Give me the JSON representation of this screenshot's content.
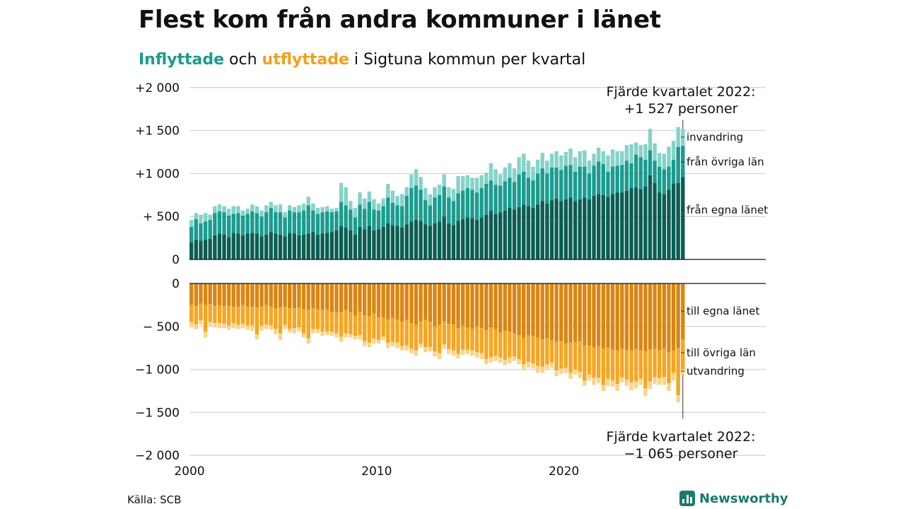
{
  "title": "Flest kom från andra kommuner i länet",
  "subtitle": {
    "in_word": "Inflyttade",
    "and_word": " och ",
    "out_word": "utflyttade",
    "rest": " i Sigtuna kommun per kvartal"
  },
  "annotations": {
    "top_line1": "Fjärde kvartalet 2022:",
    "top_line2": "+1 527 personer",
    "bottom_line1": "Fjärde kvartalet 2022:",
    "bottom_line2": "−1 065 personer"
  },
  "source": "Källa: SCB",
  "logo_text": "Newsworthy",
  "colors": {
    "in_own": "#0b5d52",
    "in_other": "#1a9c8f",
    "in_immig": "#86d3c8",
    "out_own": "#d98613",
    "out_other": "#f5a623",
    "out_emig": "#f9d48c",
    "grid": "#d9d9d9",
    "axis": "#111111"
  },
  "chart_data": {
    "type": "bar",
    "stacked": true,
    "diverging": true,
    "title": "Flest kom från andra kommuner i länet",
    "subtitle": "Inflyttade och utflyttade i Sigtuna kommun per kvartal",
    "xlabel": "",
    "ylabel": "",
    "ylim": [
      -2000,
      2000
    ],
    "y_ticks_top": [
      {
        "value": 2000,
        "label": "+2 000"
      },
      {
        "value": 1500,
        "label": "+1 500"
      },
      {
        "value": 1000,
        "label": "+1 000"
      },
      {
        "value": 500,
        "label": "+  500"
      },
      {
        "value": 0,
        "label": "0"
      }
    ],
    "y_ticks_bottom": [
      {
        "value": 0,
        "label": "0"
      },
      {
        "value": -500,
        "label": "−  500"
      },
      {
        "value": -1000,
        "label": "−1 000"
      },
      {
        "value": -1500,
        "label": "−1 500"
      },
      {
        "value": -2000,
        "label": "−2 000"
      }
    ],
    "x_ticks": [
      {
        "value": 2000,
        "label": "2000"
      },
      {
        "value": 2010,
        "label": "2010"
      },
      {
        "value": 2020,
        "label": "2020"
      }
    ],
    "start_year": 2000,
    "period": "quarter",
    "grid": true,
    "legend": "direct labels on right",
    "series_labels": {
      "in_immig": "invandring",
      "in_other": "från övriga län",
      "in_own": "från egna länet",
      "out_own": "till egna länet",
      "out_other": "till övriga län",
      "out_emig": "utvandring"
    },
    "series": [
      {
        "name": "från egna länet",
        "key": "in_own",
        "values": [
          200,
          230,
          220,
          230,
          240,
          280,
          300,
          290,
          260,
          310,
          300,
          280,
          300,
          310,
          300,
          270,
          290,
          320,
          300,
          290,
          270,
          310,
          300,
          280,
          290,
          300,
          320,
          290,
          300,
          310,
          320,
          340,
          390,
          370,
          340,
          290,
          380,
          350,
          390,
          340,
          350,
          380,
          420,
          400,
          390,
          370,
          410,
          440,
          460,
          450,
          410,
          390,
          420,
          440,
          500,
          420,
          400,
          450,
          470,
          490,
          480,
          460,
          490,
          520,
          570,
          530,
          550,
          570,
          600,
          580,
          610,
          640,
          620,
          600,
          640,
          680,
          650,
          690,
          710,
          680,
          700,
          720,
          680,
          700,
          720,
          700,
          740,
          760,
          750,
          730,
          760,
          780,
          780,
          800,
          830,
          840,
          820,
          850,
          980,
          890,
          780,
          760,
          810,
          880,
          890,
          960
        ]
      },
      {
        "name": "från övriga län",
        "key": "in_other",
        "values": [
          180,
          240,
          200,
          210,
          220,
          260,
          260,
          260,
          250,
          220,
          240,
          230,
          230,
          250,
          240,
          230,
          260,
          280,
          250,
          260,
          220,
          260,
          250,
          270,
          280,
          330,
          250,
          240,
          250,
          250,
          230,
          220,
          280,
          260,
          240,
          200,
          260,
          240,
          280,
          240,
          220,
          240,
          300,
          260,
          240,
          250,
          330,
          390,
          400,
          360,
          280,
          240,
          300,
          310,
          350,
          300,
          280,
          320,
          330,
          340,
          330,
          320,
          340,
          360,
          350,
          340,
          310,
          340,
          350,
          320,
          380,
          380,
          330,
          320,
          360,
          380,
          350,
          380,
          360,
          360,
          390,
          380,
          340,
          380,
          360,
          300,
          350,
          380,
          360,
          290,
          320,
          310,
          320,
          350,
          290,
          380,
          370,
          310,
          290,
          260,
          300,
          290,
          270,
          280,
          420,
          360
        ]
      },
      {
        "name": "invandring",
        "key": "in_immig",
        "values": [
          80,
          70,
          100,
          100,
          60,
          80,
          80,
          70,
          80,
          90,
          80,
          60,
          60,
          80,
          80,
          70,
          80,
          70,
          80,
          90,
          60,
          60,
          60,
          80,
          80,
          100,
          80,
          70,
          60,
          60,
          40,
          40,
          220,
          210,
          100,
          110,
          140,
          120,
          120,
          120,
          80,
          90,
          160,
          140,
          110,
          140,
          100,
          160,
          190,
          150,
          140,
          130,
          120,
          120,
          140,
          120,
          140,
          200,
          170,
          150,
          140,
          170,
          150,
          130,
          200,
          180,
          130,
          160,
          170,
          160,
          200,
          210,
          200,
          160,
          160,
          180,
          150,
          160,
          190,
          170,
          160,
          190,
          170,
          180,
          190,
          150,
          140,
          160,
          150,
          190,
          200,
          170,
          160,
          180,
          220,
          140,
          140,
          180,
          250,
          200,
          160,
          180,
          230,
          220,
          230,
          200
        ]
      },
      {
        "name": "till egna länet",
        "key": "out_own",
        "values": [
          -250,
          -260,
          -230,
          -250,
          -240,
          -260,
          -250,
          -260,
          -260,
          -270,
          -270,
          -250,
          -270,
          -270,
          -280,
          -270,
          -250,
          -270,
          -290,
          -280,
          -270,
          -290,
          -290,
          -280,
          -300,
          -310,
          -290,
          -300,
          -310,
          -300,
          -330,
          -340,
          -330,
          -310,
          -340,
          -370,
          -330,
          -370,
          -380,
          -350,
          -390,
          -400,
          -420,
          -400,
          -420,
          -440,
          -420,
          -460,
          -480,
          -440,
          -420,
          -450,
          -500,
          -480,
          -440,
          -470,
          -480,
          -520,
          -490,
          -510,
          -530,
          -500,
          -520,
          -540,
          -510,
          -530,
          -570,
          -550,
          -560,
          -580,
          -600,
          -630,
          -600,
          -610,
          -630,
          -650,
          -640,
          -660,
          -680,
          -670,
          -700,
          -690,
          -680,
          -670,
          -720,
          -720,
          -740,
          -730,
          -760,
          -750,
          -770,
          -780,
          -760,
          -770,
          -780,
          -760,
          -780,
          -790,
          -770,
          -760,
          -780,
          -760,
          -800,
          -780,
          -750,
          -650
        ]
      },
      {
        "name": "till övriga län",
        "key": "out_other",
        "values": [
          -200,
          -220,
          -200,
          -310,
          -210,
          -200,
          -210,
          -210,
          -230,
          -190,
          -210,
          -220,
          -220,
          -220,
          -310,
          -220,
          -230,
          -220,
          -240,
          -300,
          -210,
          -240,
          -230,
          -230,
          -280,
          -330,
          -240,
          -230,
          -250,
          -260,
          -230,
          -240,
          -290,
          -270,
          -250,
          -240,
          -270,
          -300,
          -310,
          -290,
          -270,
          -220,
          -270,
          -280,
          -270,
          -290,
          -300,
          -300,
          -300,
          -260,
          -320,
          -290,
          -290,
          -330,
          -270,
          -290,
          -300,
          -300,
          -280,
          -260,
          -250,
          -300,
          -290,
          -340,
          -350,
          -310,
          -290,
          -340,
          -300,
          -270,
          -280,
          -310,
          -310,
          -320,
          -330,
          -320,
          -300,
          -260,
          -330,
          -320,
          -280,
          -350,
          -320,
          -360,
          -410,
          -340,
          -360,
          -370,
          -420,
          -360,
          -360,
          -390,
          -330,
          -350,
          -370,
          -380,
          -330,
          -430,
          -370,
          -330,
          -320,
          -330,
          -360,
          -260,
          -550,
          -350
        ]
      },
      {
        "name": "utvandring",
        "key": "out_emig",
        "values": [
          -60,
          -50,
          -50,
          -70,
          -40,
          -50,
          -60,
          -50,
          -50,
          -60,
          -50,
          -50,
          -50,
          -60,
          -60,
          -60,
          -50,
          -50,
          -60,
          -80,
          -50,
          -40,
          -60,
          -50,
          -50,
          -60,
          -50,
          -50,
          -50,
          -40,
          -50,
          -50,
          -60,
          -50,
          -40,
          -40,
          -50,
          -60,
          -50,
          -60,
          -40,
          -40,
          -60,
          -50,
          -60,
          -50,
          -60,
          -50,
          -60,
          -50,
          -60,
          -50,
          -60,
          -70,
          -50,
          -60,
          -60,
          -50,
          -60,
          -50,
          -60,
          -60,
          -70,
          -60,
          -60,
          -60,
          -60,
          -60,
          -70,
          -50,
          -60,
          -70,
          -70,
          -60,
          -80,
          -70,
          -60,
          -60,
          -70,
          -60,
          -60,
          -70,
          -60,
          -70,
          -60,
          -70,
          -80,
          -60,
          -70,
          -80,
          -70,
          -80,
          -60,
          -70,
          -90,
          -80,
          -70,
          -90,
          -90,
          -80,
          -80,
          -90,
          -90,
          -90,
          -80,
          -65
        ]
      }
    ]
  }
}
